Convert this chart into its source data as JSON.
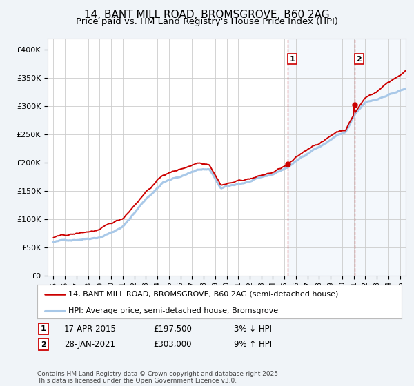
{
  "title": "14, BANT MILL ROAD, BROMSGROVE, B60 2AG",
  "subtitle": "Price paid vs. HM Land Registry's House Price Index (HPI)",
  "hpi_label": "HPI: Average price, semi-detached house, Bromsgrove",
  "property_label": "14, BANT MILL ROAD, BROMSGROVE, B60 2AG (semi-detached house)",
  "sale1_date": "17-APR-2015",
  "sale1_price": "£197,500",
  "sale1_hpi": "3% ↓ HPI",
  "sale1_year": 2015.29,
  "sale1_value": 197500,
  "sale2_date": "28-JAN-2021",
  "sale2_price": "£303,000",
  "sale2_hpi": "9% ↑ HPI",
  "sale2_year": 2021.07,
  "sale2_value": 303000,
  "footer": "Contains HM Land Registry data © Crown copyright and database right 2025.\nThis data is licensed under the Open Government Licence v3.0.",
  "ylim": [
    0,
    420000
  ],
  "yticks": [
    0,
    50000,
    100000,
    150000,
    200000,
    250000,
    300000,
    350000,
    400000
  ],
  "xlim_start": 1994.5,
  "xlim_end": 2025.5,
  "hpi_color": "#a8c8e8",
  "property_color": "#cc0000",
  "dashed_line_color": "#cc0000",
  "background_color": "#f0f4f8",
  "plot_bg_color": "#ffffff",
  "grid_color": "#cccccc",
  "title_fontsize": 11,
  "subtitle_fontsize": 9.5,
  "tick_fontsize": 8,
  "legend_fontsize": 8,
  "info_fontsize": 8.5,
  "footer_fontsize": 6.5
}
